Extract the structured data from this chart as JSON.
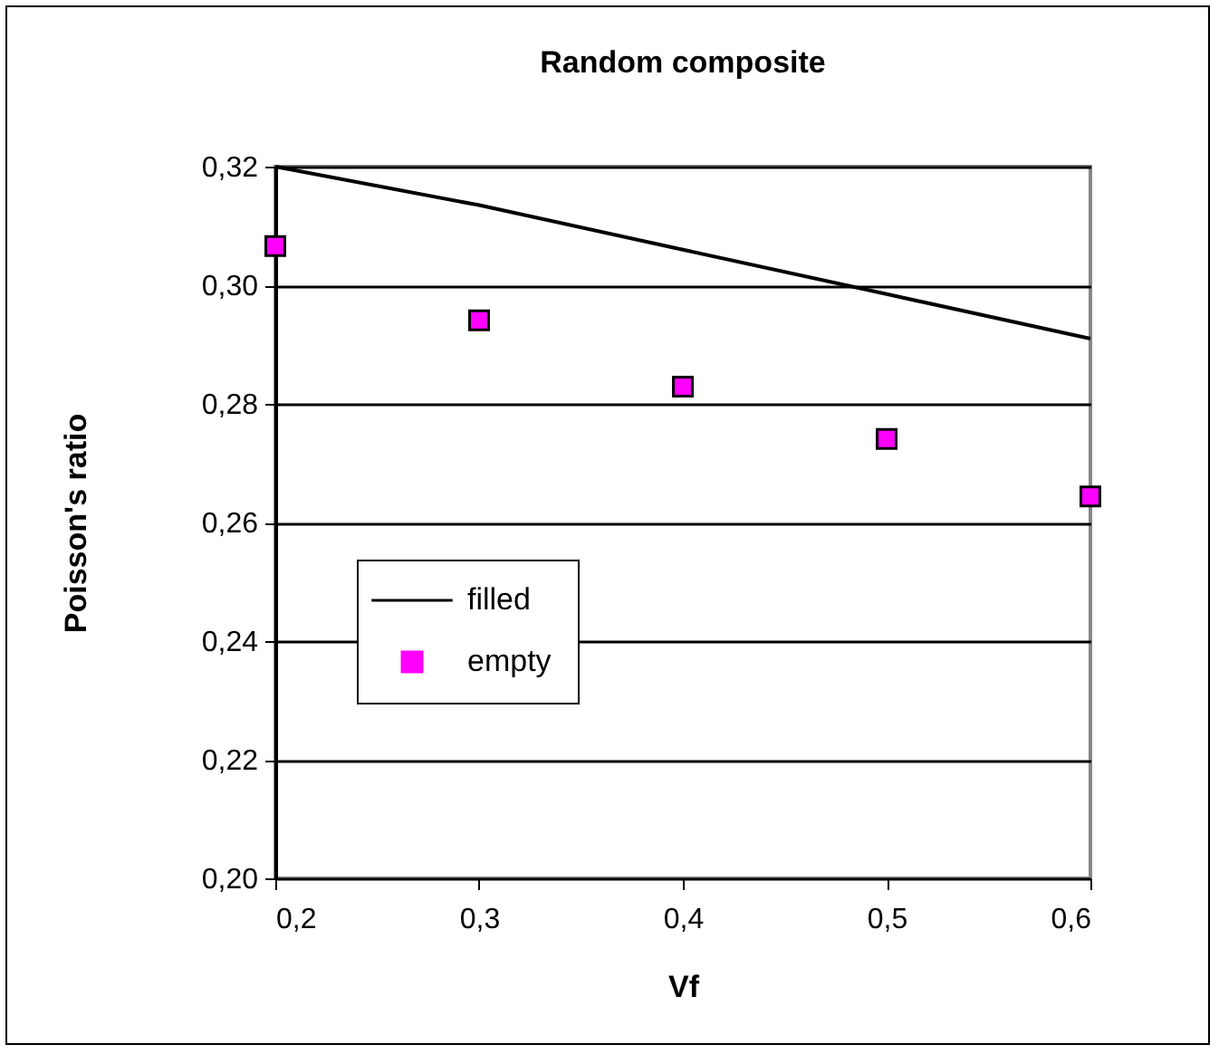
{
  "chart_data": {
    "type": "scatter",
    "title": "Random composite",
    "xlabel": "Vf",
    "ylabel": "Poisson's ratio",
    "x": [
      0.2,
      0.3,
      0.4,
      0.5,
      0.6
    ],
    "series": [
      {
        "name": "filled",
        "type": "line",
        "color": "#000000",
        "marker": "none",
        "values": [
          0.32,
          0.3135,
          0.306,
          0.2985,
          0.291
        ]
      },
      {
        "name": "empty",
        "color": "#ff00ff",
        "marker": "square",
        "values": [
          0.3066,
          0.2941,
          0.2829,
          0.2741,
          0.2644
        ]
      }
    ],
    "grid": "y",
    "legend": "left",
    "xlim": [
      0.2,
      0.6
    ],
    "xticks": [
      {
        "value": 0.2,
        "label": "0,2"
      },
      {
        "value": 0.3,
        "label": "0,3"
      },
      {
        "value": 0.4,
        "label": "0,4"
      },
      {
        "value": 0.5,
        "label": "0,5"
      },
      {
        "value": 0.6,
        "label": "0,6"
      }
    ],
    "ylim": [
      0.2,
      0.32
    ],
    "yticks": [
      {
        "value": 0.2,
        "label": "0,20"
      },
      {
        "value": 0.22,
        "label": "0,22"
      },
      {
        "value": 0.24,
        "label": "0,24"
      },
      {
        "value": 0.26,
        "label": "0,26"
      },
      {
        "value": 0.28,
        "label": "0,28"
      },
      {
        "value": 0.3,
        "label": "0,30"
      },
      {
        "value": 0.32,
        "label": "0,32"
      }
    ]
  }
}
